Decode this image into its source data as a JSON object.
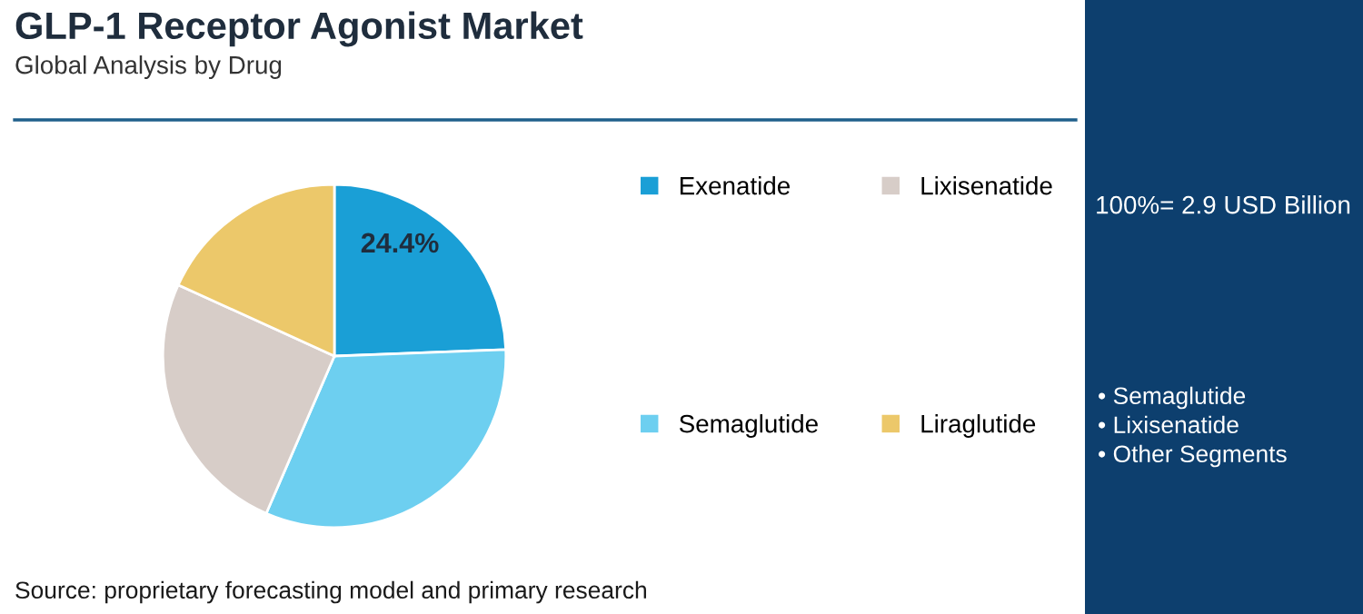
{
  "chart_data": {
    "type": "pie",
    "title": "GLP-1 Receptor Agonist Market",
    "subtitle": "Global Analysis by Drug",
    "categories": [
      "Exenatide",
      "Semaglutide",
      "Lixisenatide",
      "Liraglutide"
    ],
    "values": [
      24.4,
      32.1,
      25.3,
      18.2
    ],
    "colors": [
      "#1a9fd6",
      "#6dcff0",
      "#d7cdc8",
      "#ecc86a"
    ],
    "value_labels": [
      "24.4%",
      null,
      null,
      null
    ],
    "legend": "right",
    "annotations": [
      "Source: proprietary forecasting model and primary research",
      "100%= 2.9 USD Billion",
      "• Semaglutide",
      "• Lixisenatide",
      "• Other Segments"
    ]
  }
}
